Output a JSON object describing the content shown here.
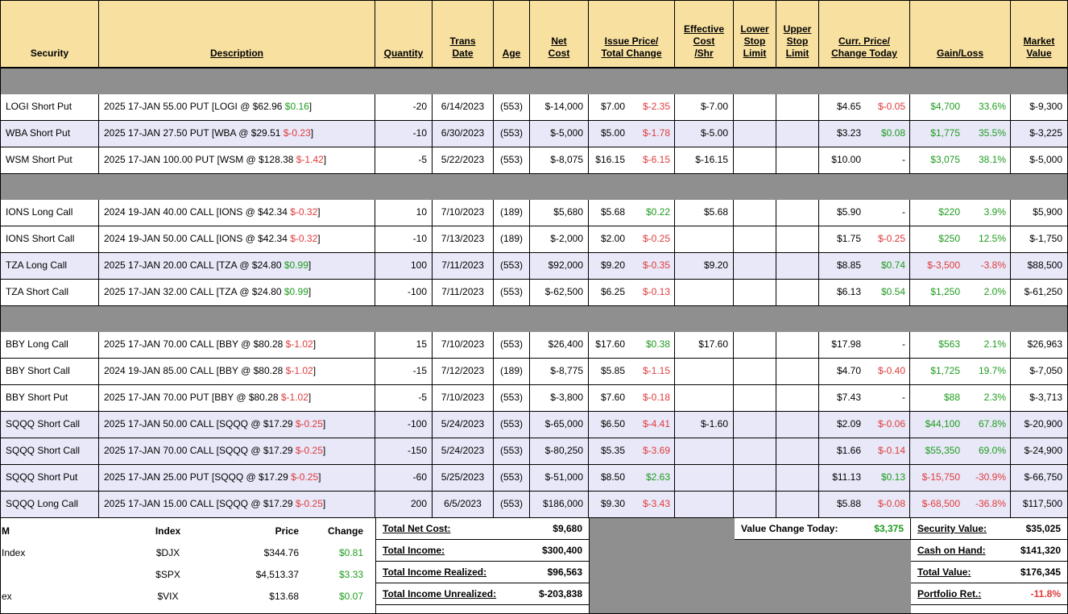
{
  "colors": {
    "header_bg": "#F7E0A0",
    "gray_band": "#8F8F8F",
    "row_alt": "#E8E8F8",
    "green": "#1E9B1E",
    "red": "#E03A3A"
  },
  "columns": [
    {
      "key": "security",
      "label": "Security",
      "underline": false
    },
    {
      "key": "description",
      "label": "Description",
      "underline": true
    },
    {
      "key": "quantity",
      "label": "Quantity",
      "underline": true
    },
    {
      "key": "trans-date",
      "label": "Trans\nDate",
      "underline": true
    },
    {
      "key": "age",
      "label": "Age",
      "underline": true
    },
    {
      "key": "net-cost",
      "label": "Net\nCost",
      "underline": true
    },
    {
      "key": "issue-price",
      "label": "Issue Price/\nTotal Change",
      "underline": true
    },
    {
      "key": "effective-cost",
      "label": "Effective\nCost\n/Shr",
      "underline": true
    },
    {
      "key": "lower-stop",
      "label": "Lower\nStop\nLimit",
      "underline": true
    },
    {
      "key": "upper-stop",
      "label": "Upper\nStop\nLimit",
      "underline": true
    },
    {
      "key": "curr-price",
      "label": "Curr. Price/\nChange Today",
      "underline": true
    },
    {
      "key": "gain-loss",
      "label": "Gain/Loss",
      "underline": true
    },
    {
      "key": "market-value",
      "label": "Market\nValue",
      "underline": true
    }
  ],
  "sections": [
    {
      "rows": [
        {
          "sec": "LOGI Short Put",
          "d1": "2025 17-JAN 55.00 PUT [LOGI @ $62.96 ",
          "d2": "$0.16",
          "d2c": "green",
          "d3": "]",
          "qty": "-20",
          "date": "6/14/2023",
          "age": "(553)",
          "net": "$-14,000",
          "ip": "$7.00",
          "ic": "$-2.35",
          "icc": "red",
          "eff": "$-7.00",
          "lo": "",
          "up": "",
          "cp": "$4.65",
          "cc": "$-0.05",
          "ccc": "red",
          "gl": "$4,700",
          "glc": "green",
          "pct": "33.6%",
          "pctc": "green",
          "mv": "$-9,300",
          "shaded": false
        },
        {
          "sec": "WBA Short Put",
          "d1": "2025 17-JAN 27.50 PUT [WBA @ $29.51 ",
          "d2": "$-0.23",
          "d2c": "red",
          "d3": "]",
          "qty": "-10",
          "date": "6/30/2023",
          "age": "(553)",
          "net": "$-5,000",
          "ip": "$5.00",
          "ic": "$-1.78",
          "icc": "red",
          "eff": "$-5.00",
          "lo": "",
          "up": "",
          "cp": "$3.23",
          "cc": "$0.08",
          "ccc": "green",
          "gl": "$1,775",
          "glc": "green",
          "pct": "35.5%",
          "pctc": "green",
          "mv": "$-3,225",
          "shaded": true
        },
        {
          "sec": "WSM Short Put",
          "d1": "2025 17-JAN 100.00 PUT [WSM @ $128.38 ",
          "d2": "$-1.42",
          "d2c": "red",
          "d3": "]",
          "qty": "-5",
          "date": "5/22/2023",
          "age": "(553)",
          "net": "$-8,075",
          "ip": "$16.15",
          "ic": "$-6.15",
          "icc": "red",
          "eff": "$-16.15",
          "lo": "",
          "up": "",
          "cp": "$10.00",
          "cc": "-",
          "ccc": "",
          "gl": "$3,075",
          "glc": "green",
          "pct": "38.1%",
          "pctc": "green",
          "mv": "$-5,000",
          "shaded": false
        }
      ]
    },
    {
      "rows": [
        {
          "sec": "IONS Long Call",
          "d1": "2024 19-JAN 40.00 CALL [IONS @ $42.34 ",
          "d2": "$-0.32",
          "d2c": "red",
          "d3": "]",
          "qty": "10",
          "date": "7/10/2023",
          "age": "(189)",
          "net": "$5,680",
          "ip": "$5.68",
          "ic": "$0.22",
          "icc": "green",
          "eff": "$5.68",
          "lo": "",
          "up": "",
          "cp": "$5.90",
          "cc": "-",
          "ccc": "",
          "gl": "$220",
          "glc": "green",
          "pct": "3.9%",
          "pctc": "green",
          "mv": "$5,900",
          "shaded": false
        },
        {
          "sec": "IONS Short Call",
          "d1": "2024 19-JAN 50.00 CALL [IONS @ $42.34 ",
          "d2": "$-0.32",
          "d2c": "red",
          "d3": "]",
          "qty": "-10",
          "date": "7/13/2023",
          "age": "(189)",
          "net": "$-2,000",
          "ip": "$2.00",
          "ic": "$-0.25",
          "icc": "red",
          "eff": "",
          "lo": "",
          "up": "",
          "cp": "$1.75",
          "cc": "$-0.25",
          "ccc": "red",
          "gl": "$250",
          "glc": "green",
          "pct": "12.5%",
          "pctc": "green",
          "mv": "$-1,750",
          "shaded": false
        },
        {
          "sec": "TZA Long Call",
          "d1": "2025 17-JAN 20.00 CALL [TZA @ $24.80 ",
          "d2": "$0.99",
          "d2c": "green",
          "d3": "]",
          "qty": "100",
          "date": "7/11/2023",
          "age": "(553)",
          "net": "$92,000",
          "ip": "$9.20",
          "ic": "$-0.35",
          "icc": "red",
          "eff": "$9.20",
          "lo": "",
          "up": "",
          "cp": "$8.85",
          "cc": "$0.74",
          "ccc": "green",
          "gl": "$-3,500",
          "glc": "red",
          "pct": "-3.8%",
          "pctc": "red",
          "mv": "$88,500",
          "shaded": true
        },
        {
          "sec": "TZA Short Call",
          "d1": "2025 17-JAN 32.00 CALL [TZA @ $24.80 ",
          "d2": "$0.99",
          "d2c": "green",
          "d3": "]",
          "qty": "-100",
          "date": "7/11/2023",
          "age": "(553)",
          "net": "$-62,500",
          "ip": "$6.25",
          "ic": "$-0.13",
          "icc": "red",
          "eff": "",
          "lo": "",
          "up": "",
          "cp": "$6.13",
          "cc": "$0.54",
          "ccc": "green",
          "gl": "$1,250",
          "glc": "green",
          "pct": "2.0%",
          "pctc": "green",
          "mv": "$-61,250",
          "shaded": false
        }
      ]
    },
    {
      "rows": [
        {
          "sec": "BBY Long Call",
          "d1": "2025 17-JAN 70.00 CALL [BBY @ $80.28 ",
          "d2": "$-1.02",
          "d2c": "red",
          "d3": "]",
          "qty": "15",
          "date": "7/10/2023",
          "age": "(553)",
          "net": "$26,400",
          "ip": "$17.60",
          "ic": "$0.38",
          "icc": "green",
          "eff": "$17.60",
          "lo": "",
          "up": "",
          "cp": "$17.98",
          "cc": "-",
          "ccc": "",
          "gl": "$563",
          "glc": "green",
          "pct": "2.1%",
          "pctc": "green",
          "mv": "$26,963",
          "shaded": false
        },
        {
          "sec": "BBY Short Call",
          "d1": "2024 19-JAN 85.00 CALL [BBY @ $80.28 ",
          "d2": "$-1.02",
          "d2c": "red",
          "d3": "]",
          "qty": "-15",
          "date": "7/12/2023",
          "age": "(189)",
          "net": "$-8,775",
          "ip": "$5.85",
          "ic": "$-1.15",
          "icc": "red",
          "eff": "",
          "lo": "",
          "up": "",
          "cp": "$4.70",
          "cc": "$-0.40",
          "ccc": "red",
          "gl": "$1,725",
          "glc": "green",
          "pct": "19.7%",
          "pctc": "green",
          "mv": "$-7,050",
          "shaded": false
        },
        {
          "sec": "BBY Short Put",
          "d1": "2025 17-JAN 70.00 PUT [BBY @ $80.28 ",
          "d2": "$-1.02",
          "d2c": "red",
          "d3": "]",
          "qty": "-5",
          "date": "7/10/2023",
          "age": "(553)",
          "net": "$-3,800",
          "ip": "$7.60",
          "ic": "$-0.18",
          "icc": "red",
          "eff": "",
          "lo": "",
          "up": "",
          "cp": "$7.43",
          "cc": "-",
          "ccc": "",
          "gl": "$88",
          "glc": "green",
          "pct": "2.3%",
          "pctc": "green",
          "mv": "$-3,713",
          "shaded": false
        },
        {
          "sec": "SQQQ Short Call",
          "d1": "2025 17-JAN 50.00 CALL [SQQQ @ $17.29 ",
          "d2": "$-0.25",
          "d2c": "red",
          "d3": "]",
          "qty": "-100",
          "date": "5/24/2023",
          "age": "(553)",
          "net": "$-65,000",
          "ip": "$6.50",
          "ic": "$-4.41",
          "icc": "red",
          "eff": "$-1.60",
          "lo": "",
          "up": "",
          "cp": "$2.09",
          "cc": "$-0.06",
          "ccc": "red",
          "gl": "$44,100",
          "glc": "green",
          "pct": "67.8%",
          "pctc": "green",
          "mv": "$-20,900",
          "shaded": true
        },
        {
          "sec": "SQQQ Short Call",
          "d1": "2025 17-JAN 70.00 CALL [SQQQ @ $17.29 ",
          "d2": "$-0.25",
          "d2c": "red",
          "d3": "]",
          "qty": "-150",
          "date": "5/24/2023",
          "age": "(553)",
          "net": "$-80,250",
          "ip": "$5.35",
          "ic": "$-3.69",
          "icc": "red",
          "eff": "",
          "lo": "",
          "up": "",
          "cp": "$1.66",
          "cc": "$-0.14",
          "ccc": "red",
          "gl": "$55,350",
          "glc": "green",
          "pct": "69.0%",
          "pctc": "green",
          "mv": "$-24,900",
          "shaded": true
        },
        {
          "sec": "SQQQ Short Put",
          "d1": "2025 17-JAN 25.00 PUT [SQQQ @ $17.29 ",
          "d2": "$-0.25",
          "d2c": "red",
          "d3": "]",
          "qty": "-60",
          "date": "5/25/2023",
          "age": "(553)",
          "net": "$-51,000",
          "ip": "$8.50",
          "ic": "$2.63",
          "icc": "green",
          "eff": "",
          "lo": "",
          "up": "",
          "cp": "$11.13",
          "cc": "$0.13",
          "ccc": "green",
          "gl": "$-15,750",
          "glc": "red",
          "pct": "-30.9%",
          "pctc": "red",
          "mv": "$-66,750",
          "shaded": true
        },
        {
          "sec": "SQQQ Long Call",
          "d1": "2025 17-JAN 15.00 CALL [SQQQ @ $17.29 ",
          "d2": "$-0.25",
          "d2c": "red",
          "d3": "]",
          "qty": "200",
          "date": "6/5/2023",
          "age": "(553)",
          "net": "$186,000",
          "ip": "$9.30",
          "ic": "$-3.43",
          "icc": "red",
          "eff": "",
          "lo": "",
          "up": "",
          "cp": "$5.88",
          "cc": "$-0.08",
          "ccc": "red",
          "gl": "$-68,500",
          "glc": "red",
          "pct": "-36.8%",
          "pctc": "red",
          "mv": "$117,500",
          "shaded": true
        }
      ]
    }
  ],
  "footer": {
    "quotes": {
      "headers": {
        "frag": "M",
        "index": "Index",
        "price": "Price",
        "change": "Change"
      },
      "rows": [
        {
          "frag": "Index",
          "symbol": "$DJX",
          "price": "$344.76",
          "change": "$0.81",
          "change_color": "green"
        },
        {
          "frag": "",
          "symbol": "$SPX",
          "price": "$4,513.37",
          "change": "$3.33",
          "change_color": "green"
        },
        {
          "frag": "ex",
          "symbol": "$VIX",
          "price": "$13.68",
          "change": "$0.07",
          "change_color": "green"
        }
      ]
    },
    "totals": [
      {
        "label": "Total Net Cost:",
        "value": "$9,680"
      },
      {
        "label": "Total Income:",
        "value": "$300,400"
      },
      {
        "label": "Total Income Realized:",
        "value": "$96,563"
      },
      {
        "label": "Total Income Unrealized:",
        "value": "$-203,838"
      }
    ],
    "value_change": {
      "label": "Value Change Today:",
      "value": "$3,375",
      "value_color": "green"
    },
    "summary": [
      {
        "label": "Security Value:",
        "value": "$35,025"
      },
      {
        "label": "Cash on Hand:",
        "value": "$141,320"
      },
      {
        "label": "Total Value:",
        "value": "$176,345"
      },
      {
        "label": "Portfolio Ret.:",
        "value": "-11.8%",
        "value_color": "red"
      }
    ]
  }
}
